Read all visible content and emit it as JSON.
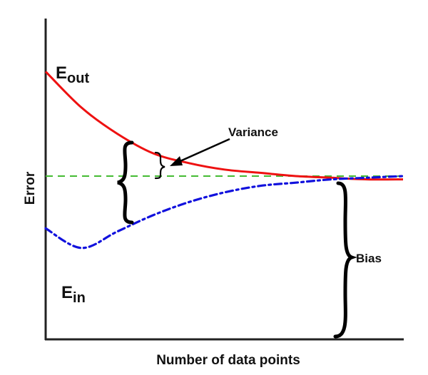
{
  "chart_data": {
    "type": "line",
    "title": "",
    "xlabel": "Number of data points",
    "ylabel": "Error",
    "grid": false,
    "legend": "none",
    "axis_ticks": false,
    "x_range": [
      0,
      1
    ],
    "y_range": [
      0,
      1
    ],
    "series": [
      {
        "key": "eout",
        "label_main": "E",
        "label_sub": "out",
        "color": "#ee1111",
        "line_style": "solid",
        "x": [
          0.0,
          0.1,
          0.2,
          0.3,
          0.4,
          0.5,
          0.6,
          0.7,
          0.8,
          0.9,
          1.0
        ],
        "y": [
          0.82,
          0.71,
          0.63,
          0.57,
          0.54,
          0.52,
          0.51,
          0.5,
          0.495,
          0.49,
          0.49
        ]
      },
      {
        "key": "ein",
        "label_main": "E",
        "label_sub": "in",
        "color": "#1111dd",
        "line_style": "dash-dot",
        "x": [
          0.0,
          0.1,
          0.2,
          0.3,
          0.4,
          0.5,
          0.6,
          0.7,
          0.8,
          0.9,
          1.0
        ],
        "y": [
          0.34,
          0.28,
          0.33,
          0.38,
          0.42,
          0.45,
          0.47,
          0.48,
          0.49,
          0.495,
          0.5
        ]
      },
      {
        "key": "limit",
        "label_main": "",
        "label_sub": "",
        "color": "#44bb33",
        "line_style": "dashed",
        "x": [
          0.0,
          1.0
        ],
        "y": [
          0.5,
          0.5
        ]
      }
    ],
    "annotations": [
      {
        "key": "variance",
        "text": "Variance"
      },
      {
        "key": "bias",
        "text": "Bias"
      }
    ]
  }
}
